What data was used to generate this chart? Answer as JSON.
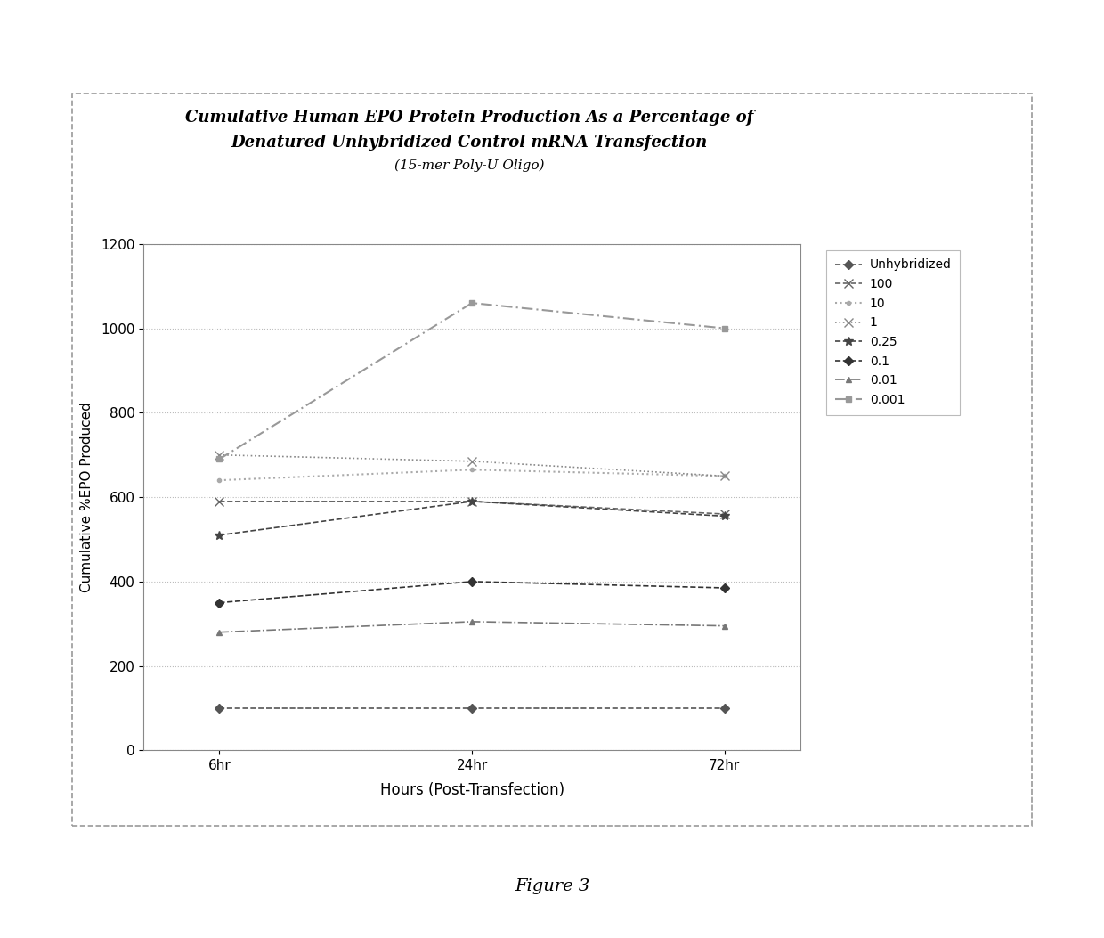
{
  "title_line1": "Cumulative Human EPO Protein Production As a Percentage of",
  "title_line2": "Denatured Unhybridized Control mRNA Transfection",
  "title_line3": "(15-mer Poly-U Oligo)",
  "xlabel": "Hours (Post-Transfection)",
  "ylabel": "Cumulative %EPO Produced",
  "xtick_labels": [
    "6hr",
    "24hr",
    "72hr"
  ],
  "x_positions": [
    0,
    1,
    2
  ],
  "ylim": [
    0,
    1200
  ],
  "yticks": [
    0,
    200,
    400,
    600,
    800,
    1000,
    1200
  ],
  "fig_caption": "Figure 3",
  "series": [
    {
      "label": "Unhybridized",
      "values": [
        100,
        100,
        100
      ],
      "color": "#555555",
      "linestyle": "--",
      "marker": "D",
      "markersize": 5,
      "linewidth": 1.2,
      "dashes": []
    },
    {
      "label": "100",
      "values": [
        590,
        590,
        560
      ],
      "color": "#666666",
      "linestyle": "--",
      "marker": "x",
      "markersize": 7,
      "linewidth": 1.2,
      "dashes": []
    },
    {
      "label": "10",
      "values": [
        640,
        665,
        650
      ],
      "color": "#aaaaaa",
      "linestyle": ":",
      "marker": "o",
      "markersize": 3,
      "linewidth": 1.5,
      "dashes": []
    },
    {
      "label": "1",
      "values": [
        700,
        685,
        650
      ],
      "color": "#888888",
      "linestyle": ":",
      "marker": "x",
      "markersize": 7,
      "linewidth": 1.2,
      "dashes": []
    },
    {
      "label": "0.25",
      "values": [
        510,
        590,
        555
      ],
      "color": "#444444",
      "linestyle": "--",
      "marker": "*",
      "markersize": 7,
      "linewidth": 1.2,
      "dashes": []
    },
    {
      "label": "0.1",
      "values": [
        350,
        400,
        385
      ],
      "color": "#333333",
      "linestyle": "--",
      "marker": "D",
      "markersize": 5,
      "linewidth": 1.2,
      "dashes": []
    },
    {
      "label": "0.01",
      "values": [
        280,
        305,
        295
      ],
      "color": "#777777",
      "linestyle": "-.",
      "marker": "^",
      "markersize": 5,
      "linewidth": 1.2,
      "dashes": []
    },
    {
      "label": "0.001",
      "values": [
        690,
        1060,
        1000
      ],
      "color": "#999999",
      "linestyle": "--",
      "marker": "s",
      "markersize": 4,
      "linewidth": 1.5,
      "dashes": [
        6,
        2,
        1,
        2
      ]
    }
  ],
  "background_color": "#ffffff",
  "plot_bg_color": "#ffffff",
  "outer_box_color": "#aaaaaa",
  "grid_color": "#cccccc",
  "border_color": "#888888",
  "figure_width": 12.4,
  "figure_height": 10.53
}
